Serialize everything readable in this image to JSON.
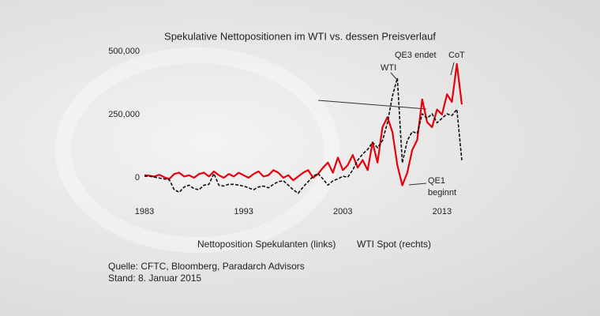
{
  "chart_data": {
    "type": "line",
    "title": "Spekulative Nettopositionen im WTI vs. dessen Preisverlauf",
    "x": [
      1983,
      1983.5,
      1984,
      1984.5,
      1985,
      1985.5,
      1986,
      1986.5,
      1987,
      1987.5,
      1988,
      1988.5,
      1989,
      1989.5,
      1990,
      1990.5,
      1991,
      1991.5,
      1992,
      1992.5,
      1993,
      1993.5,
      1994,
      1994.5,
      1995,
      1995.5,
      1996,
      1996.5,
      1997,
      1997.5,
      1998,
      1998.5,
      1999,
      1999.5,
      2000,
      2000.5,
      2001,
      2001.5,
      2002,
      2002.5,
      2003,
      2003.5,
      2004,
      2004.5,
      2005,
      2005.5,
      2006,
      2006.5,
      2007,
      2007.5,
      2008,
      2008.5,
      2009,
      2009.5,
      2010,
      2010.5,
      2011,
      2011.5,
      2012,
      2012.5,
      2013,
      2013.5,
      2014,
      2014.5,
      2015
    ],
    "series": [
      {
        "name": "Nettoposition Spekulanten (links)",
        "color": "#e8000b",
        "dashed": false,
        "values": [
          10000,
          8000,
          5000,
          12000,
          2000,
          -5000,
          15000,
          20000,
          5000,
          10000,
          0,
          15000,
          20000,
          5000,
          25000,
          10000,
          0,
          15000,
          5000,
          20000,
          10000,
          0,
          15000,
          25000,
          5000,
          10000,
          30000,
          20000,
          0,
          10000,
          -10000,
          5000,
          20000,
          30000,
          0,
          15000,
          40000,
          60000,
          20000,
          80000,
          30000,
          50000,
          90000,
          40000,
          70000,
          30000,
          140000,
          60000,
          200000,
          240000,
          180000,
          50000,
          -30000,
          20000,
          110000,
          150000,
          310000,
          220000,
          200000,
          270000,
          250000,
          330000,
          300000,
          450000,
          290000
        ]
      },
      {
        "name": "WTI Spot (rechts)",
        "color": "#111111",
        "dashed": true,
        "axis": "y2",
        "values": [
          30,
          30,
          29,
          28,
          27,
          26,
          15,
          12,
          18,
          20,
          16,
          15,
          20,
          21,
          33,
          20,
          19,
          21,
          21,
          20,
          19,
          17,
          15,
          18,
          19,
          17,
          21,
          24,
          25,
          20,
          15,
          11,
          18,
          24,
          30,
          33,
          27,
          20,
          25,
          27,
          30,
          29,
          37,
          48,
          55,
          60,
          68,
          62,
          70,
          90,
          120,
          140,
          45,
          70,
          80,
          78,
          100,
          95,
          100,
          90,
          95,
          100,
          98,
          105,
          48
        ]
      }
    ],
    "xlim": [
      1983,
      2015
    ],
    "xticks": [
      1983,
      1993,
      2003,
      2013
    ],
    "ylim": [
      -100000,
      500000
    ],
    "yticks": [
      0,
      {
        "value": 250000,
        "label": "250,000"
      },
      {
        "value": 500000,
        "label": "500,000"
      }
    ],
    "y2lim": [
      0,
      170
    ],
    "annotations": [
      "WTI",
      "QE3 endet",
      "CoT",
      "QE1\nbeginnt"
    ],
    "source": [
      "Quelle: CFTC, Bloomberg, Paradarch Advisors",
      "Stand: 8. Januar 2015"
    ]
  }
}
